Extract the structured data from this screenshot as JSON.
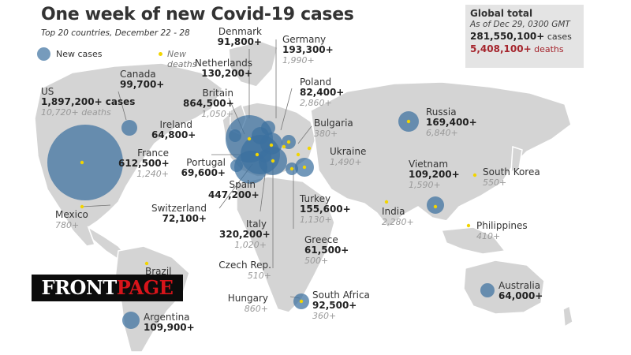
{
  "title": "One week of new Covid-19 cases",
  "subtitle": "Top 20 countries, December 22 - 28",
  "legend": {
    "cases_label": "New cases",
    "deaths_label": "New deaths"
  },
  "global": {
    "title": "Global total",
    "as_of": "As of Dec 29, 0300 GMT",
    "cases": "281,550,100+",
    "cases_label": "cases",
    "deaths": "5,408,100+",
    "deaths_label": "deaths"
  },
  "colors": {
    "land": "#d4d4d4",
    "ocean": "#ffffff",
    "bubble": "#3c70a0",
    "death_dot": "#f2d500",
    "deaths_text": "#a5252d",
    "panel": "#e4e4e4"
  },
  "countries": [
    {
      "name": "US",
      "cases": "1,897,200+ cases",
      "deaths": "10,720+ deaths",
      "cases_value": 1897200
    },
    {
      "name": "Canada",
      "cases": "99,700+",
      "deaths": "",
      "cases_value": 99700
    },
    {
      "name": "Mexico",
      "cases": "",
      "deaths": "780+",
      "cases_value": 0
    },
    {
      "name": "Brazil",
      "cases": "",
      "deaths": "",
      "cases_value": 0
    },
    {
      "name": "Argentina",
      "cases": "109,900+",
      "deaths": "",
      "cases_value": 109900
    },
    {
      "name": "Denmark",
      "cases": "91,800+",
      "deaths": "",
      "cases_value": 91800
    },
    {
      "name": "Netherlands",
      "cases": "130,200+",
      "deaths": "",
      "cases_value": 130200
    },
    {
      "name": "Britain",
      "cases": "864,500+",
      "deaths": "1,050+",
      "cases_value": 864500
    },
    {
      "name": "Ireland",
      "cases": "64,800+",
      "deaths": "",
      "cases_value": 64800
    },
    {
      "name": "France",
      "cases": "612,500+",
      "deaths": "1,240+",
      "cases_value": 612500
    },
    {
      "name": "Portugal",
      "cases": "69,600+",
      "deaths": "",
      "cases_value": 69600
    },
    {
      "name": "Spain",
      "cases": "447,200+",
      "deaths": "",
      "cases_value": 447200
    },
    {
      "name": "Switzerland",
      "cases": "72,100+",
      "deaths": "",
      "cases_value": 72100
    },
    {
      "name": "Italy",
      "cases": "320,200+",
      "deaths": "1,020+",
      "cases_value": 320200
    },
    {
      "name": "Czech Rep.",
      "cases": "",
      "deaths": "510+",
      "cases_value": 0
    },
    {
      "name": "Hungary",
      "cases": "",
      "deaths": "860+",
      "cases_value": 0
    },
    {
      "name": "Germany",
      "cases": "193,300+",
      "deaths": "1,990+",
      "cases_value": 193300
    },
    {
      "name": "Poland",
      "cases": "82,400+",
      "deaths": "2,860+",
      "cases_value": 82400
    },
    {
      "name": "Bulgaria",
      "cases": "",
      "deaths": "380+",
      "cases_value": 0
    },
    {
      "name": "Ukraine",
      "cases": "",
      "deaths": "1,490+",
      "cases_value": 0
    },
    {
      "name": "Turkey",
      "cases": "155,600+",
      "deaths": "1,130+",
      "cases_value": 155600
    },
    {
      "name": "Greece",
      "cases": "61,500+",
      "deaths": "500+",
      "cases_value": 61500
    },
    {
      "name": "South Africa",
      "cases": "92,500+",
      "deaths": "360+",
      "cases_value": 92500
    },
    {
      "name": "Russia",
      "cases": "169,400+",
      "deaths": "6,840+",
      "cases_value": 169400
    },
    {
      "name": "Vietnam",
      "cases": "109,200+",
      "deaths": "1,590+",
      "cases_value": 109200
    },
    {
      "name": "India",
      "cases": "",
      "deaths": "2,280+",
      "cases_value": 0
    },
    {
      "name": "South Korea",
      "cases": "",
      "deaths": "550+",
      "cases_value": 0
    },
    {
      "name": "Philippines",
      "cases": "",
      "deaths": "410+",
      "cases_value": 0
    },
    {
      "name": "Australia",
      "cases": "64,000+",
      "deaths": "",
      "cases_value": 64000
    }
  ],
  "watermark": {
    "part1": "FRONT",
    "part2": "PAGE"
  }
}
